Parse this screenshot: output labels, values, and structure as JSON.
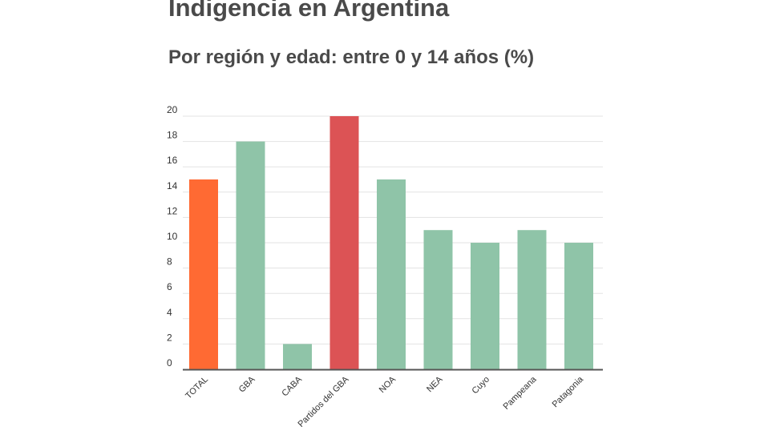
{
  "title": "Indigencia en Argentina",
  "subtitle": "Por región y edad: entre 0 y 14 años (%)",
  "colors": {
    "default_bar": "#8fc4a8",
    "total_bar": "#ff6a33",
    "highlight_bar": "#dc5355",
    "grid": "#e3e3e3",
    "axis": "#555555",
    "text": "#333333"
  },
  "chart_data": {
    "type": "bar",
    "title": "Indigencia en Argentina",
    "subtitle": "Por región y edad: entre 0 y 14 años (%)",
    "categories": [
      "TOTAL",
      "GBA",
      "CABA",
      "Partidos del GBA",
      "NOA",
      "NEA",
      "Cuyo",
      "Pampeana",
      "Patagonia"
    ],
    "values": [
      15,
      18,
      2,
      20,
      15,
      11,
      10,
      11,
      10
    ],
    "bar_colors": [
      "#ff6a33",
      "#8fc4a8",
      "#8fc4a8",
      "#dc5355",
      "#8fc4a8",
      "#8fc4a8",
      "#8fc4a8",
      "#8fc4a8",
      "#8fc4a8"
    ],
    "yticks": [
      "0",
      "2",
      "4",
      "6",
      "8",
      "10",
      "12",
      "14",
      "16",
      "18",
      "20"
    ],
    "ylim": [
      0,
      20
    ],
    "xlabel": "",
    "ylabel": "",
    "grid": true,
    "legend": "none"
  }
}
